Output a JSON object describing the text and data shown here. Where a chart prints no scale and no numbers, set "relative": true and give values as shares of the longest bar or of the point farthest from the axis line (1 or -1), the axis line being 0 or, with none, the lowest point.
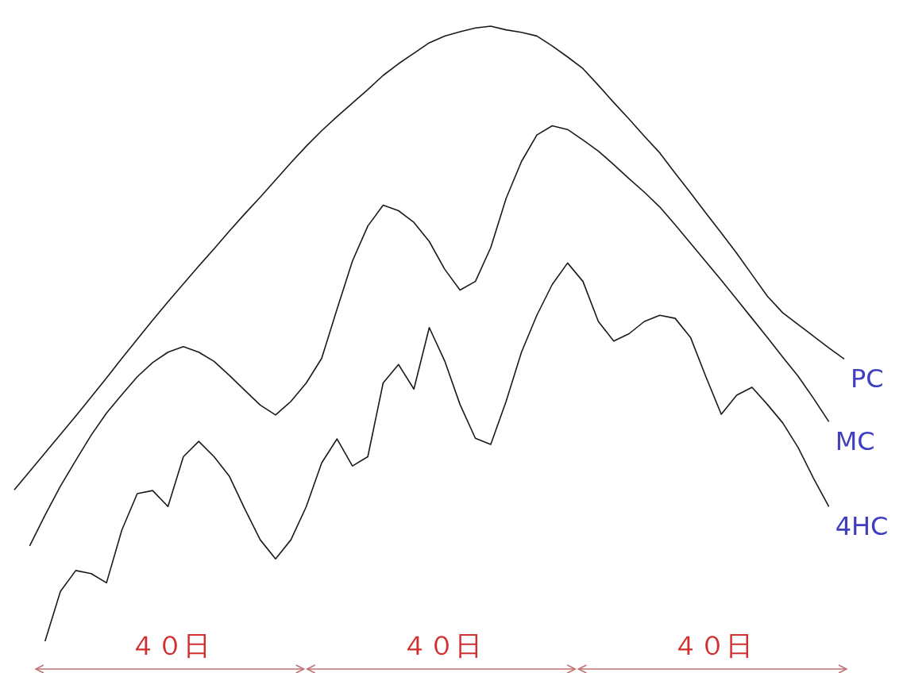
{
  "chart_data": {
    "type": "line",
    "relative": true,
    "legend": false,
    "categories": [
      null,
      null,
      null,
      null,
      null,
      null,
      null,
      null,
      null,
      null,
      null,
      null,
      null,
      null,
      null,
      null,
      null,
      null,
      null,
      null,
      null,
      null,
      null,
      null,
      null,
      null,
      null,
      null,
      null,
      null,
      null,
      null,
      null,
      null,
      null,
      null,
      null,
      null,
      null,
      null,
      null,
      null,
      null,
      null,
      null,
      null,
      null,
      null,
      null,
      null,
      null,
      null,
      null,
      null,
      null
    ],
    "series": [
      {
        "name": "PC",
        "color": "#1a1a1a",
        "values": [
          0.246,
          0.276,
          0.306,
          0.336,
          0.366,
          0.397,
          0.428,
          0.46,
          0.491,
          0.522,
          0.552,
          0.581,
          0.61,
          0.638,
          0.667,
          0.695,
          0.722,
          0.75,
          0.778,
          0.805,
          0.83,
          0.853,
          0.875,
          0.897,
          0.92,
          0.939,
          0.956,
          0.973,
          0.984,
          0.991,
          0.997,
          1,
          0.994,
          0.99,
          0.984,
          0.968,
          0.95,
          0.931,
          0.904,
          0.876,
          0.849,
          0.821,
          0.794,
          0.761,
          0.729,
          0.696,
          0.664,
          0.631,
          0.596,
          0.561,
          0.534,
          0.515,
          0.496,
          0.477,
          0.459
        ]
      },
      {
        "name": "MC",
        "color": "#1a1a1a",
        "values": [
          null,
          0.155,
          0.205,
          0.252,
          0.294,
          0.335,
          0.371,
          0.401,
          0.43,
          0.453,
          0.47,
          0.479,
          0.47,
          0.455,
          0.432,
          0.408,
          0.384,
          0.368,
          0.39,
          0.42,
          0.46,
          0.54,
          0.618,
          0.675,
          0.709,
          0.7,
          0.681,
          0.65,
          0.605,
          0.571,
          0.585,
          0.64,
          0.72,
          0.78,
          0.823,
          0.838,
          0.832,
          0.815,
          0.797,
          0.775,
          0.752,
          0.73,
          0.706,
          0.677,
          0.647,
          0.617,
          0.587,
          0.556,
          0.525,
          0.494,
          0.462,
          0.431,
          0.395,
          0.357,
          null
        ]
      },
      {
        "name": "4HC",
        "color": "#1a1a1a",
        "values": [
          null,
          null,
          0,
          0.081,
          0.115,
          0.11,
          0.095,
          0.181,
          0.24,
          0.245,
          0.219,
          0.3,
          0.325,
          0.3,
          0.268,
          0.215,
          0.165,
          0.134,
          0.165,
          0.219,
          0.29,
          0.329,
          0.285,
          0.3,
          0.42,
          0.45,
          0.41,
          0.51,
          0.456,
          0.385,
          0.33,
          0.32,
          0.39,
          0.47,
          0.53,
          0.58,
          0.615,
          0.585,
          0.52,
          0.488,
          0.5,
          0.52,
          0.53,
          0.525,
          0.494,
          0.43,
          0.369,
          0.4,
          0.413,
          0.385,
          0.355,
          0.315,
          0.265,
          0.219,
          null
        ]
      }
    ],
    "annotations": [
      "４０日",
      "４０日",
      "４０日"
    ]
  }
}
